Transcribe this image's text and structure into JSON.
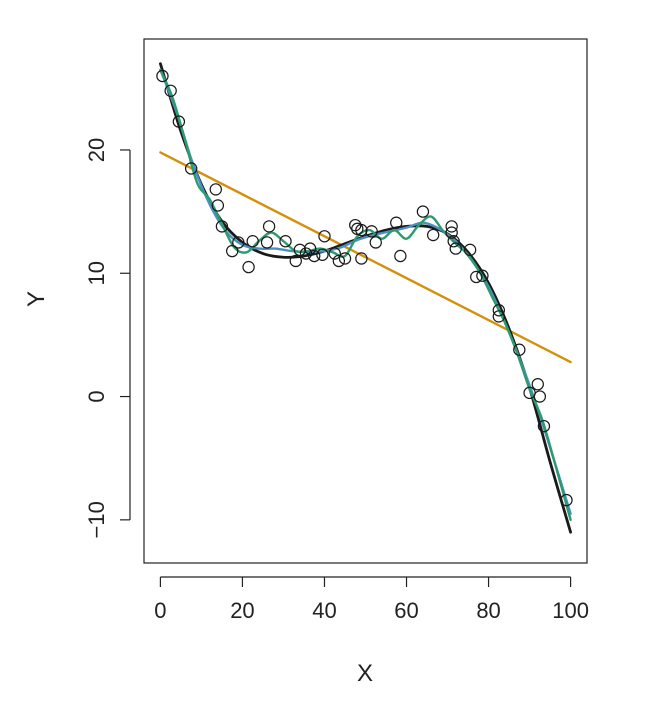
{
  "chart_data": {
    "type": "scatter",
    "title": "",
    "xlabel": "X",
    "ylabel": "Y",
    "xlim": [
      -4,
      104
    ],
    "ylim": [
      -13.5,
      29
    ],
    "x_ticks": [
      0,
      20,
      40,
      60,
      80,
      100
    ],
    "x_tick_labels": [
      "0",
      "20",
      "40",
      "60",
      "80",
      "100"
    ],
    "y_ticks": [
      -10,
      0,
      10,
      20
    ],
    "y_tick_labels": [
      "−10",
      "0",
      "10",
      "20"
    ],
    "grid": false,
    "legend": "none",
    "points": [
      {
        "x": 0.5,
        "y": 26.0
      },
      {
        "x": 2.5,
        "y": 24.8
      },
      {
        "x": 4.5,
        "y": 22.3
      },
      {
        "x": 7.5,
        "y": 18.5
      },
      {
        "x": 13.5,
        "y": 16.8
      },
      {
        "x": 14.0,
        "y": 15.5
      },
      {
        "x": 15.0,
        "y": 13.8
      },
      {
        "x": 17.5,
        "y": 11.8
      },
      {
        "x": 19.0,
        "y": 12.5
      },
      {
        "x": 21.5,
        "y": 10.5
      },
      {
        "x": 22.5,
        "y": 12.6
      },
      {
        "x": 26.0,
        "y": 12.5
      },
      {
        "x": 26.5,
        "y": 13.8
      },
      {
        "x": 30.5,
        "y": 12.6
      },
      {
        "x": 33.0,
        "y": 11.0
      },
      {
        "x": 34.0,
        "y": 11.9
      },
      {
        "x": 35.5,
        "y": 11.6
      },
      {
        "x": 36.5,
        "y": 12.0
      },
      {
        "x": 37.5,
        "y": 11.4
      },
      {
        "x": 39.5,
        "y": 11.5
      },
      {
        "x": 40.0,
        "y": 13.0
      },
      {
        "x": 42.5,
        "y": 11.6
      },
      {
        "x": 43.5,
        "y": 11.0
      },
      {
        "x": 45.0,
        "y": 11.2
      },
      {
        "x": 47.5,
        "y": 13.9
      },
      {
        "x": 48.0,
        "y": 13.6
      },
      {
        "x": 49.0,
        "y": 13.5
      },
      {
        "x": 49.0,
        "y": 11.2
      },
      {
        "x": 51.5,
        "y": 13.4
      },
      {
        "x": 52.5,
        "y": 12.5
      },
      {
        "x": 57.5,
        "y": 14.1
      },
      {
        "x": 58.5,
        "y": 11.4
      },
      {
        "x": 64.0,
        "y": 15.0
      },
      {
        "x": 66.5,
        "y": 13.1
      },
      {
        "x": 71.0,
        "y": 13.8
      },
      {
        "x": 71.0,
        "y": 13.3
      },
      {
        "x": 71.5,
        "y": 12.6
      },
      {
        "x": 72.0,
        "y": 12.0
      },
      {
        "x": 75.5,
        "y": 11.9
      },
      {
        "x": 77.0,
        "y": 9.7
      },
      {
        "x": 78.5,
        "y": 9.8
      },
      {
        "x": 82.5,
        "y": 7.0
      },
      {
        "x": 82.5,
        "y": 6.5
      },
      {
        "x": 87.5,
        "y": 3.8
      },
      {
        "x": 90.0,
        "y": 0.3
      },
      {
        "x": 92.0,
        "y": 1.0
      },
      {
        "x": 92.5,
        "y": 0.0
      },
      {
        "x": 93.5,
        "y": -2.4
      },
      {
        "x": 99.0,
        "y": -8.4
      }
    ],
    "series": [
      {
        "color": "#d4900c",
        "x": [
          0,
          100
        ],
        "y": [
          19.8,
          2.8
        ]
      },
      {
        "color": "#1a1a1a",
        "x": [
          0,
          5,
          10,
          15,
          20,
          25,
          30,
          35,
          40,
          45,
          50,
          55,
          60,
          65,
          70,
          75,
          80,
          85,
          90,
          95,
          100
        ],
        "y": [
          27.0,
          21.5,
          17.2,
          14.2,
          12.5,
          11.6,
          11.3,
          11.4,
          11.8,
          12.4,
          13.0,
          13.5,
          13.8,
          13.8,
          13.2,
          11.7,
          9.2,
          5.5,
          0.7,
          -5.3,
          -11.0
        ]
      },
      {
        "color": "#4a90c4",
        "x": [
          0,
          4,
          8,
          12,
          16,
          20,
          24,
          28,
          32,
          36,
          40,
          44,
          48,
          52,
          56,
          60,
          64,
          68,
          72,
          76,
          80,
          84,
          88,
          92,
          96,
          100
        ],
        "y": [
          26.5,
          23.0,
          18.8,
          15.6,
          13.4,
          12.3,
          12.0,
          12.0,
          11.8,
          11.7,
          11.8,
          12.1,
          12.7,
          13.1,
          13.4,
          13.7,
          14.1,
          13.6,
          12.6,
          11.0,
          8.9,
          6.0,
          2.7,
          -1.0,
          -5.2,
          -9.5
        ]
      },
      {
        "color": "#2e9a6e",
        "x": [
          0,
          3,
          6,
          9,
          12,
          15,
          18,
          21,
          24,
          27,
          30,
          33,
          36,
          39,
          42,
          45,
          48,
          51,
          54,
          57,
          60,
          63,
          66,
          69,
          72,
          75,
          78,
          81,
          84,
          87,
          90,
          93,
          96,
          100
        ],
        "y": [
          26.5,
          24.2,
          20.8,
          17.3,
          16.0,
          14.0,
          12.1,
          11.7,
          12.6,
          13.3,
          12.6,
          11.8,
          11.8,
          12.0,
          11.7,
          11.4,
          13.0,
          13.5,
          12.8,
          13.5,
          12.8,
          13.9,
          14.6,
          13.4,
          12.4,
          11.5,
          10.0,
          8.0,
          6.0,
          3.5,
          0.6,
          -1.8,
          -5.2,
          -10.0
        ]
      }
    ]
  }
}
